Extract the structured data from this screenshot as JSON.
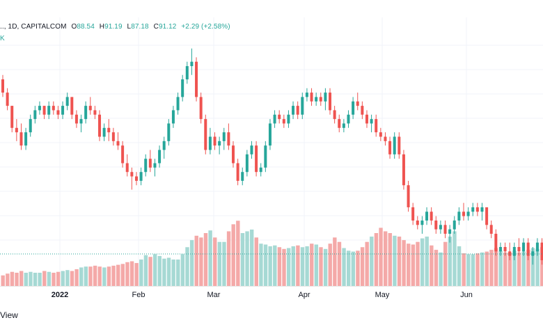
{
  "header": {
    "symbol_fragment": "..,",
    "interval": "1D",
    "source": "CAPITALCOM",
    "open_label": "O",
    "open_value": "88.54",
    "high_label": "H",
    "high_value": "91.19",
    "low_label": "L",
    "low_value": "87.18",
    "close_label": "C",
    "close_value": "91.12",
    "change": "+2.29 (+2.58%)",
    "volume_fragment": "K"
  },
  "footer": {
    "text": "View"
  },
  "colors": {
    "up": "#26a69a",
    "down": "#ef5350",
    "vol_up": "#a6d9d4",
    "vol_down": "#f4a9a8",
    "grid": "#f0f3fa",
    "dotted": "#26a69a"
  },
  "chart_data": {
    "type": "candlestick",
    "x_labels": [
      "2022",
      "Feb",
      "Mar",
      "Apr",
      "May",
      "Jun"
    ],
    "price_range": [
      68,
      115
    ],
    "candles": [
      [
        106,
        107,
        102,
        103
      ],
      [
        103,
        104,
        99,
        100
      ],
      [
        100,
        100,
        94,
        95
      ],
      [
        95,
        97,
        92,
        94
      ],
      [
        94,
        96,
        90,
        91
      ],
      [
        91,
        95,
        90,
        94
      ],
      [
        94,
        98,
        93,
        97
      ],
      [
        97,
        100,
        96,
        99
      ],
      [
        99,
        101,
        98,
        100
      ],
      [
        100,
        100,
        97,
        98
      ],
      [
        98,
        101,
        97,
        100
      ],
      [
        100,
        101,
        98,
        99
      ],
      [
        99,
        100,
        97,
        98
      ],
      [
        98,
        101,
        97,
        100
      ],
      [
        100,
        103,
        99,
        102
      ],
      [
        102,
        102,
        97,
        98
      ],
      [
        98,
        99,
        95,
        96
      ],
      [
        96,
        98,
        94,
        97
      ],
      [
        97,
        101,
        96,
        100
      ],
      [
        100,
        102,
        98,
        99
      ],
      [
        99,
        100,
        97,
        98
      ],
      [
        98,
        99,
        92,
        93
      ],
      [
        93,
        96,
        92,
        95
      ],
      [
        95,
        97,
        92,
        94
      ],
      [
        94,
        95,
        91,
        92
      ],
      [
        92,
        94,
        90,
        91
      ],
      [
        91,
        92,
        86,
        87
      ],
      [
        87,
        89,
        84,
        85
      ],
      [
        85,
        86,
        81,
        84
      ],
      [
        84,
        85,
        82,
        83
      ],
      [
        83,
        86,
        82,
        85
      ],
      [
        85,
        89,
        84,
        88
      ],
      [
        88,
        90,
        85,
        86
      ],
      [
        86,
        88,
        84,
        87
      ],
      [
        87,
        91,
        86,
        90
      ],
      [
        90,
        93,
        88,
        92
      ],
      [
        92,
        97,
        91,
        96
      ],
      [
        96,
        100,
        95,
        99
      ],
      [
        99,
        103,
        98,
        102
      ],
      [
        102,
        107,
        101,
        106
      ],
      [
        106,
        110,
        105,
        109
      ],
      [
        109,
        113,
        107,
        110
      ],
      [
        110,
        111,
        101,
        102
      ],
      [
        102,
        103,
        96,
        97
      ],
      [
        97,
        98,
        89,
        90
      ],
      [
        90,
        95,
        89,
        93
      ],
      [
        93,
        94,
        90,
        91
      ],
      [
        91,
        93,
        89,
        92
      ],
      [
        92,
        95,
        90,
        94
      ],
      [
        94,
        96,
        90,
        91
      ],
      [
        91,
        92,
        86,
        87
      ],
      [
        87,
        88,
        82,
        83
      ],
      [
        83,
        86,
        82,
        85
      ],
      [
        85,
        90,
        84,
        89
      ],
      [
        89,
        92,
        88,
        91
      ],
      [
        91,
        92,
        84,
        85
      ],
      [
        85,
        87,
        84,
        86
      ],
      [
        86,
        92,
        85,
        91
      ],
      [
        91,
        97,
        90,
        96
      ],
      [
        96,
        99,
        95,
        98
      ],
      [
        98,
        99,
        96,
        97
      ],
      [
        97,
        98,
        95,
        96
      ],
      [
        96,
        99,
        95,
        98
      ],
      [
        98,
        101,
        97,
        100
      ],
      [
        100,
        101,
        97,
        98
      ],
      [
        98,
        103,
        97,
        102
      ],
      [
        102,
        104,
        101,
        103
      ],
      [
        103,
        104,
        100,
        101
      ],
      [
        101,
        103,
        100,
        102
      ],
      [
        102,
        103,
        100,
        101
      ],
      [
        101,
        104,
        99,
        103
      ],
      [
        103,
        104,
        98,
        99
      ],
      [
        99,
        100,
        96,
        97
      ],
      [
        97,
        98,
        94,
        95
      ],
      [
        95,
        97,
        94,
        96
      ],
      [
        96,
        99,
        95,
        98
      ],
      [
        98,
        102,
        97,
        101
      ],
      [
        101,
        103,
        99,
        100
      ],
      [
        100,
        101,
        97,
        98
      ],
      [
        98,
        99,
        95,
        96
      ],
      [
        96,
        98,
        94,
        97
      ],
      [
        97,
        98,
        93,
        94
      ],
      [
        94,
        95,
        92,
        93
      ],
      [
        93,
        94,
        91,
        92
      ],
      [
        92,
        93,
        88,
        89
      ],
      [
        89,
        94,
        88,
        93
      ],
      [
        93,
        94,
        88,
        89
      ],
      [
        89,
        90,
        81,
        82
      ],
      [
        82,
        83,
        76,
        77
      ],
      [
        77,
        78,
        73,
        74
      ],
      [
        74,
        75,
        72,
        73
      ],
      [
        73,
        75,
        71,
        74
      ],
      [
        74,
        77,
        73,
        76
      ],
      [
        76,
        77,
        73,
        74
      ],
      [
        74,
        75,
        71,
        72
      ],
      [
        72,
        74,
        71,
        73
      ],
      [
        73,
        74,
        70,
        71
      ],
      [
        71,
        73,
        69,
        72
      ],
      [
        72,
        75,
        71,
        74
      ],
      [
        74,
        77,
        73,
        76
      ],
      [
        76,
        78,
        74,
        75
      ],
      [
        75,
        77,
        74,
        76
      ],
      [
        76,
        78,
        75,
        77
      ],
      [
        77,
        78,
        75,
        76
      ],
      [
        76,
        78,
        74,
        77
      ],
      [
        77,
        77,
        72,
        73
      ],
      [
        73,
        74,
        70,
        71
      ],
      [
        71,
        72,
        66,
        67
      ],
      [
        67,
        69,
        66,
        68
      ],
      [
        68,
        69,
        66,
        67
      ],
      [
        67,
        69,
        65,
        66
      ],
      [
        66,
        69,
        65,
        68
      ],
      [
        68,
        70,
        66,
        67
      ],
      [
        67,
        70,
        66,
        69
      ],
      [
        69,
        70,
        65,
        66
      ],
      [
        66,
        68,
        64,
        67
      ],
      [
        67,
        70,
        66,
        69
      ],
      [
        69,
        70,
        64,
        65
      ],
      [
        65,
        67,
        63,
        66
      ]
    ],
    "volume": [
      12,
      14,
      16,
      15,
      17,
      15,
      16,
      15,
      15,
      17,
      16,
      15,
      16,
      17,
      18,
      17,
      19,
      21,
      22,
      22,
      23,
      22,
      21,
      22,
      23,
      24,
      25,
      27,
      28,
      26,
      30,
      35,
      33,
      36,
      34,
      31,
      32,
      30,
      30,
      36,
      44,
      52,
      57,
      55,
      60,
      63,
      55,
      50,
      50,
      62,
      70,
      74,
      60,
      62,
      64,
      55,
      48,
      47,
      45,
      46,
      44,
      42,
      43,
      45,
      46,
      44,
      45,
      48,
      47,
      44,
      42,
      48,
      55,
      50,
      43,
      40,
      39,
      40,
      44,
      50,
      56,
      60,
      66,
      62,
      60,
      57,
      56,
      52,
      48,
      47,
      50,
      54,
      56,
      46,
      41,
      38,
      50,
      56,
      62,
      45,
      37,
      36,
      36,
      37,
      38,
      39,
      41,
      43,
      40,
      38,
      38,
      40,
      38,
      39,
      41,
      43,
      42,
      44,
      45
    ]
  }
}
